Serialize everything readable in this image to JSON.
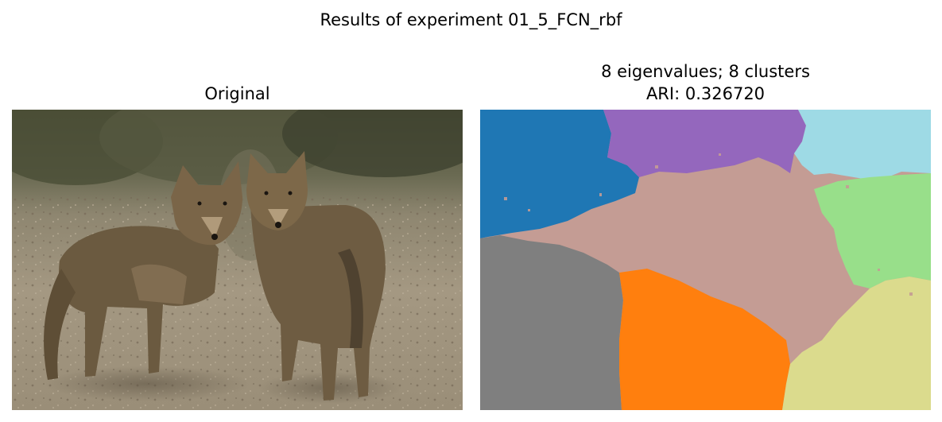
{
  "figure": {
    "suptitle": "Results of experiment 01_5_FCN_rbf"
  },
  "left_panel": {
    "title": "Original",
    "image_description": "two coyotes standing on dry pebbly ground"
  },
  "right_panel": {
    "title_line1": "8 eigenvalues; 8 clusters",
    "title_line2": "ARI: 0.326720",
    "segment_colors": {
      "blue": "#1f77b4",
      "purple": "#9467bd",
      "light_cyan": "#9edae5",
      "pink_brown": "#c49c94",
      "light_green": "#98df8a",
      "gray": "#7f7f7f",
      "orange": "#ff7f0e",
      "olive": "#dbdb8d"
    }
  }
}
